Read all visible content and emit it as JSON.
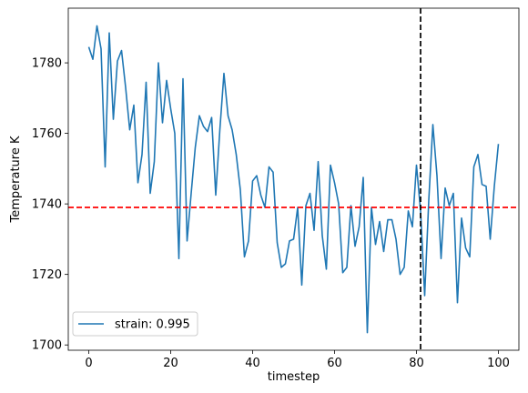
{
  "chart_data": {
    "type": "line",
    "title": "",
    "xlabel": "timestep",
    "ylabel": "Temperature K",
    "xlim": [
      -5,
      105
    ],
    "ylim": [
      1698.5,
      1795.5
    ],
    "xticks": [
      0,
      20,
      40,
      60,
      80,
      100
    ],
    "yticks": [
      1700,
      1720,
      1740,
      1760,
      1780
    ],
    "grid": false,
    "legend_position": "lower-left",
    "series": [
      {
        "name": "strain: 0.995",
        "color": "#1f77b4",
        "x": [
          0,
          1,
          2,
          3,
          4,
          5,
          6,
          7,
          8,
          9,
          10,
          11,
          12,
          13,
          14,
          15,
          16,
          17,
          18,
          19,
          20,
          21,
          22,
          23,
          24,
          25,
          26,
          27,
          28,
          29,
          30,
          31,
          32,
          33,
          34,
          35,
          36,
          37,
          38,
          39,
          40,
          41,
          42,
          43,
          44,
          45,
          46,
          47,
          48,
          49,
          50,
          51,
          52,
          53,
          54,
          55,
          56,
          57,
          58,
          59,
          60,
          61,
          62,
          63,
          64,
          65,
          66,
          67,
          68,
          69,
          70,
          71,
          72,
          73,
          74,
          75,
          76,
          77,
          78,
          79,
          80,
          81,
          82,
          83,
          84,
          85,
          86,
          87,
          88,
          89,
          90,
          91,
          92,
          93,
          94,
          95,
          96,
          97,
          98,
          99,
          100
        ],
        "y": [
          1784.5,
          1781,
          1790.5,
          1784,
          1750.5,
          1788.5,
          1764,
          1780.5,
          1783.5,
          1773,
          1761,
          1768,
          1746,
          1754,
          1774.5,
          1743,
          1752,
          1780,
          1763,
          1775,
          1767,
          1760,
          1724.5,
          1775.5,
          1729.5,
          1743,
          1756,
          1765,
          1762,
          1760.5,
          1764.5,
          1742.5,
          1761,
          1777,
          1765,
          1761,
          1754,
          1744,
          1725,
          1729.5,
          1746.5,
          1748,
          1742.5,
          1739,
          1750.5,
          1749,
          1729,
          1722,
          1723,
          1729.5,
          1730,
          1739,
          1717,
          1739.5,
          1743,
          1732.5,
          1752,
          1731,
          1721.5,
          1751,
          1746,
          1740,
          1720.5,
          1722,
          1739.5,
          1728,
          1733.5,
          1747.5,
          1703.5,
          1739,
          1728.5,
          1735,
          1726.5,
          1735.5,
          1735.5,
          1730,
          1720,
          1722,
          1738,
          1733.5,
          1751,
          1738,
          1714,
          1741,
          1762.5,
          1748,
          1724.5,
          1744.5,
          1739.5,
          1743,
          1712,
          1736,
          1727.5,
          1725,
          1750.5,
          1754,
          1745.5,
          1745,
          1730,
          1745,
          1757
        ]
      }
    ],
    "reference_lines": [
      {
        "orientation": "horizontal",
        "value": 1739,
        "color": "#ff0000",
        "style": "dashed"
      },
      {
        "orientation": "vertical",
        "value": 81,
        "color": "#000000",
        "style": "dashed"
      }
    ]
  }
}
